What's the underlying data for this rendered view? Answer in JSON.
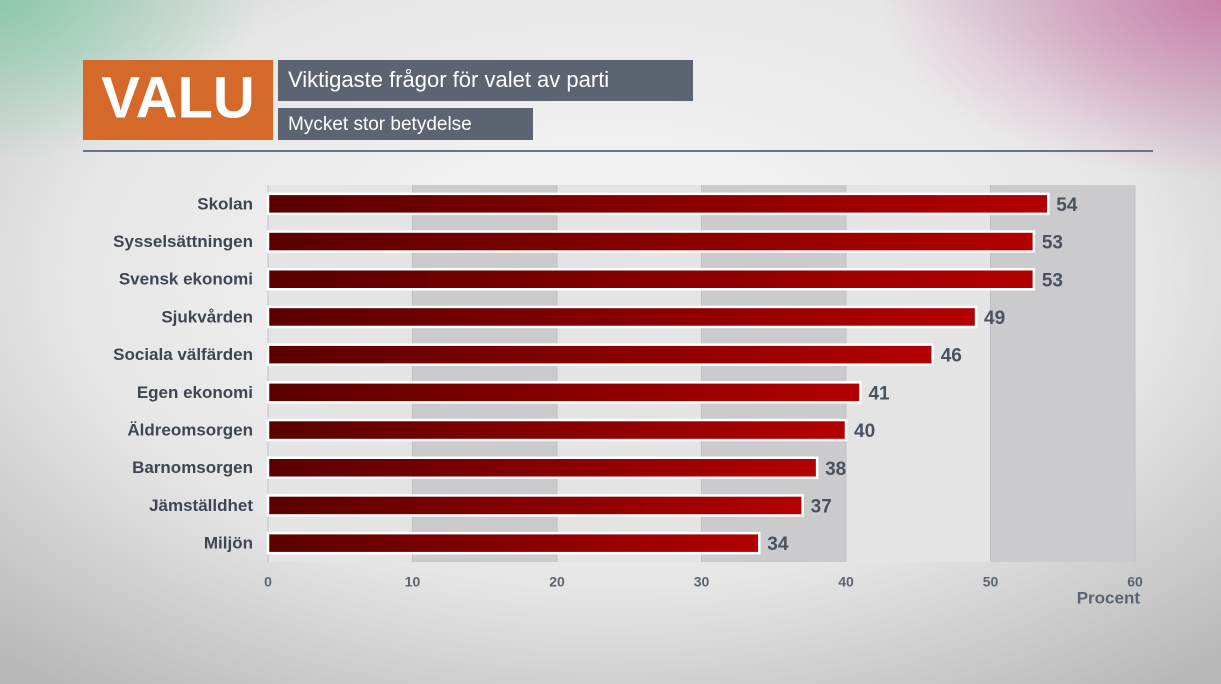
{
  "logo": "VALU",
  "chart_data": {
    "type": "bar",
    "orientation": "horizontal",
    "title": "Viktigaste frågor för valet av parti",
    "subtitle": "Mycket stor betydelse",
    "categories": [
      "Skolan",
      "Sysselsättningen",
      "Svensk ekonomi",
      "Sjukvården",
      "Sociala välfärden",
      "Egen ekonomi",
      "Äldreomsorgen",
      "Barnomsorgen",
      "Jämställdhet",
      "Miljön"
    ],
    "values": [
      54,
      53,
      53,
      49,
      46,
      41,
      40,
      38,
      37,
      34
    ],
    "color": "#b00000",
    "xlim": [
      0,
      60
    ],
    "xticks": [
      0,
      10,
      20,
      30,
      40,
      50,
      60
    ],
    "x_label": "Procent"
  }
}
